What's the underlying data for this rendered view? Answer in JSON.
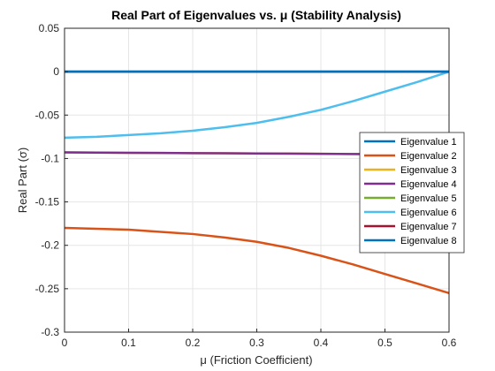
{
  "chart_data": {
    "type": "line",
    "title": "Real Part of Eigenvalues vs. μ (Stability Analysis)",
    "xlabel": "μ (Friction Coefficient)",
    "ylabel": "Real Part (σ)",
    "xlim": [
      0,
      0.6
    ],
    "ylim": [
      -0.3,
      0.05
    ],
    "x_ticks": [
      "0",
      "0.1",
      "0.2",
      "0.3",
      "0.4",
      "0.5",
      "0.6"
    ],
    "y_ticks": [
      "0.05",
      "0",
      "-0.05",
      "-0.1",
      "-0.15",
      "-0.2",
      "-0.25",
      "-0.3"
    ],
    "grid": true,
    "legend_position": "right",
    "x": [
      0,
      0.05,
      0.1,
      0.15,
      0.2,
      0.25,
      0.3,
      0.35,
      0.4,
      0.45,
      0.5,
      0.55,
      0.6
    ],
    "series": [
      {
        "name": "Eigenvalue 1",
        "color": "#0072BD",
        "values": [
          0,
          0,
          0,
          0,
          0,
          0,
          0,
          0,
          0,
          0,
          0,
          0,
          0
        ]
      },
      {
        "name": "Eigenvalue 2",
        "color": "#D95319",
        "values": [
          -0.18,
          -0.181,
          -0.182,
          -0.1845,
          -0.187,
          -0.191,
          -0.196,
          -0.203,
          -0.212,
          -0.222,
          -0.233,
          -0.244,
          -0.255
        ]
      },
      {
        "name": "Eigenvalue 3",
        "color": "#EDB120",
        "values": [
          -0.093,
          -0.0932,
          -0.0934,
          -0.0936,
          -0.0938,
          -0.094,
          -0.0942,
          -0.0944,
          -0.0946,
          -0.0948,
          -0.095,
          -0.0952,
          -0.0954
        ]
      },
      {
        "name": "Eigenvalue 4",
        "color": "#7E2F8E",
        "values": [
          -0.093,
          -0.0932,
          -0.0934,
          -0.0936,
          -0.0938,
          -0.094,
          -0.0942,
          -0.0944,
          -0.0946,
          -0.0948,
          -0.095,
          -0.0952,
          -0.0954
        ]
      },
      {
        "name": "Eigenvalue 5",
        "color": "#77AC30",
        "values": [
          0,
          0,
          0,
          0,
          0,
          0,
          0,
          0,
          0,
          0,
          0,
          0,
          0
        ]
      },
      {
        "name": "Eigenvalue 6",
        "color": "#4DBEEE",
        "values": [
          -0.076,
          -0.075,
          -0.073,
          -0.071,
          -0.068,
          -0.064,
          -0.059,
          -0.052,
          -0.044,
          -0.034,
          -0.023,
          -0.012,
          0
        ]
      },
      {
        "name": "Eigenvalue 7",
        "color": "#A2142F",
        "values": [
          0,
          0,
          0,
          0,
          0,
          0,
          0,
          0,
          0,
          0,
          0,
          0,
          0
        ]
      },
      {
        "name": "Eigenvalue 8",
        "color": "#0072BD",
        "values": [
          0,
          0,
          0,
          0,
          0,
          0,
          0,
          0,
          0,
          0,
          0,
          0,
          0
        ]
      }
    ]
  }
}
